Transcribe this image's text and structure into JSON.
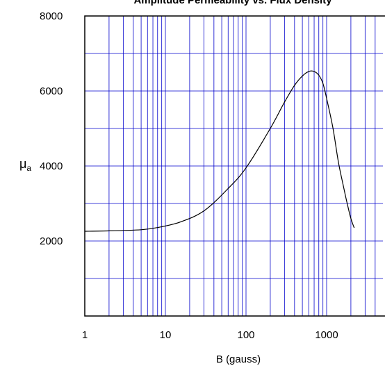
{
  "chart_data": {
    "type": "line",
    "title": "Amplitude Permeability vs. Flux Density",
    "xlabel": "B (gauss)",
    "ylabel": "μa",
    "ylabel_main": "μ",
    "ylabel_sub": "a",
    "x_scale": "log",
    "xlim": [
      1,
      5000
    ],
    "ylim": [
      0,
      8000
    ],
    "grid": true,
    "x_ticks": [
      1,
      10,
      100,
      1000
    ],
    "x_tick_labels": [
      "1",
      "10",
      "100",
      "1000"
    ],
    "y_ticks": [
      2000,
      4000,
      6000,
      8000
    ],
    "y_tick_labels": [
      "2000",
      "4000",
      "6000",
      "8000"
    ],
    "y_gridlines": [
      1000,
      2000,
      3000,
      4000,
      5000,
      6000,
      7000
    ],
    "series": [
      {
        "name": "",
        "x": [
          1,
          2,
          5,
          8,
          15,
          30,
          60,
          100,
          200,
          300,
          400,
          500,
          600,
          700,
          800,
          900,
          1000,
          1200,
          1400,
          1600,
          1800,
          2000,
          2200
        ],
        "y": [
          2260,
          2270,
          2300,
          2360,
          2500,
          2800,
          3400,
          3950,
          5000,
          5700,
          6150,
          6400,
          6520,
          6520,
          6420,
          6200,
          5800,
          5000,
          4100,
          3500,
          3000,
          2600,
          2350
        ]
      }
    ],
    "colors": {
      "grid": "#0000cc",
      "line": "#000000",
      "axis": "#000000"
    }
  }
}
